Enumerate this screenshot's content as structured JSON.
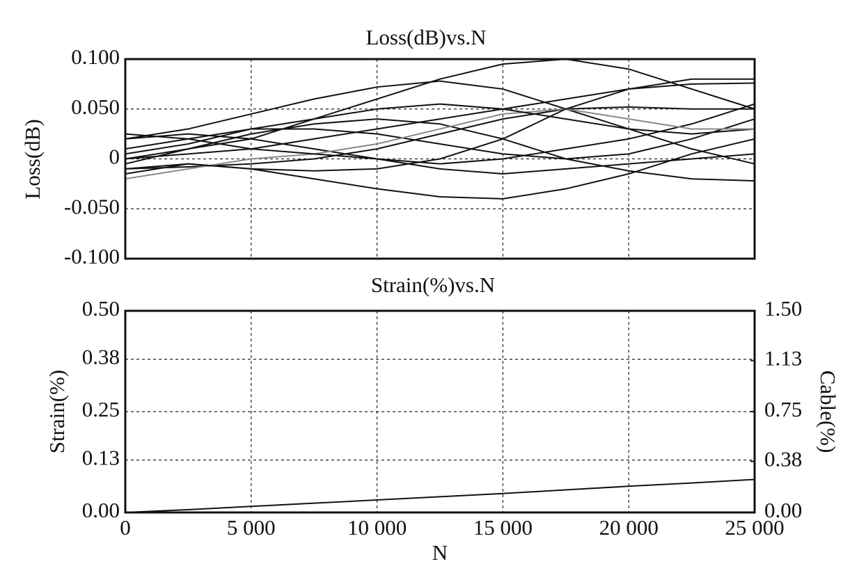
{
  "chart_data": [
    {
      "type": "line",
      "title": "Loss(dB)vs.N",
      "ylabel": "Loss(dB)",
      "x": [
        0,
        2500,
        5000,
        7500,
        10000,
        12500,
        15000,
        17500,
        20000,
        22500,
        25000
      ],
      "xlim": [
        0,
        25000
      ],
      "xticks": [
        0,
        5000,
        10000,
        15000,
        20000,
        25000
      ],
      "ylim": [
        -0.1,
        0.1
      ],
      "yticks": [
        {
          "value": 0.1,
          "label": "0.100"
        },
        {
          "value": 0.05,
          "label": "0.050"
        },
        0,
        {
          "value": -0.05,
          "label": "-0.050"
        },
        {
          "value": -0.1,
          "label": "-0.100"
        }
      ],
      "grid": true,
      "series": [
        {
          "color": "#111111",
          "values": [
            0.02,
            0.03,
            0.045,
            0.06,
            0.072,
            0.078,
            0.07,
            0.05,
            0.03,
            0.025,
            0.03
          ]
        },
        {
          "color": "#111111",
          "values": [
            -0.01,
            -0.005,
            -0.01,
            -0.02,
            -0.03,
            -0.038,
            -0.04,
            -0.03,
            -0.015,
            0.005,
            0.02
          ]
        },
        {
          "color": "#111111",
          "values": [
            0,
            0.01,
            0.02,
            0.04,
            0.06,
            0.08,
            0.095,
            0.1,
            0.09,
            0.07,
            0.05
          ]
        },
        {
          "color": "#111111",
          "values": [
            -0.005,
            0.01,
            0.025,
            0.035,
            0.04,
            0.035,
            0.02,
            0,
            -0.012,
            -0.02,
            -0.022
          ]
        },
        {
          "color": "#111111",
          "values": [
            0.01,
            0.02,
            0.03,
            0.03,
            0.025,
            0.015,
            0.005,
            0,
            0.005,
            0.02,
            0.04
          ]
        },
        {
          "color": "#111111",
          "values": [
            -0.01,
            -0.008,
            -0.005,
            0,
            0.01,
            0.025,
            0.04,
            0.05,
            0.052,
            0.05,
            0.05
          ]
        },
        {
          "color": "#111111",
          "values": [
            0,
            0.005,
            0.01,
            0.02,
            0.03,
            0.04,
            0.05,
            0.06,
            0.07,
            0.075,
            0.076
          ]
        },
        {
          "color": "#111111",
          "values": [
            0.02,
            0.025,
            0.02,
            0.01,
            0,
            -0.005,
            0,
            0.01,
            0.02,
            0.035,
            0.055
          ]
        },
        {
          "color": "#888888",
          "values": [
            -0.02,
            -0.01,
            0,
            0.005,
            0.015,
            0.03,
            0.045,
            0.05,
            0.04,
            0.03,
            0.03
          ]
        },
        {
          "color": "#111111",
          "values": [
            0.005,
            0.015,
            0.03,
            0.04,
            0.05,
            0.055,
            0.05,
            0.04,
            0.03,
            0.01,
            -0.005
          ]
        },
        {
          "color": "#111111",
          "values": [
            -0.015,
            -0.005,
            -0.01,
            -0.012,
            -0.01,
            0,
            0.02,
            0.05,
            0.07,
            0.08,
            0.08
          ]
        },
        {
          "color": "#111111",
          "values": [
            0.025,
            0.02,
            0.01,
            0.005,
            0,
            -0.01,
            -0.015,
            -0.01,
            -0.005,
            0,
            0.005
          ]
        }
      ]
    },
    {
      "type": "line",
      "title": "Strain(%)vs.N",
      "xlabel": "N",
      "ylabel": "Strain(%)",
      "y2label": "Cable(%)",
      "x": [
        0,
        2500,
        5000,
        7500,
        10000,
        12500,
        15000,
        17500,
        20000,
        22500,
        25000
      ],
      "xlim": [
        0,
        25000
      ],
      "xticks": [
        0,
        {
          "value": 5000,
          "label": "5 000"
        },
        {
          "value": 10000,
          "label": "10 000"
        },
        {
          "value": 15000,
          "label": "15 000"
        },
        {
          "value": 20000,
          "label": "20 000"
        },
        {
          "value": 25000,
          "label": "25 000"
        }
      ],
      "ylim": [
        0,
        0.5
      ],
      "yticks": [
        {
          "value": 0,
          "label": "0.00"
        },
        {
          "value": 0.13,
          "label": "0.13"
        },
        {
          "value": 0.25,
          "label": "0.25"
        },
        {
          "value": 0.38,
          "label": "0.38"
        },
        {
          "value": 0.5,
          "label": "0.50"
        }
      ],
      "y2lim": [
        0,
        1.5
      ],
      "y2ticks": [
        {
          "value": 0,
          "label": "0.00"
        },
        {
          "value": 0.38,
          "label": "0.38"
        },
        {
          "value": 0.75,
          "label": "0.75"
        },
        {
          "value": 1.13,
          "label": "1.13"
        },
        {
          "value": 1.5,
          "label": "1.50"
        }
      ],
      "grid": true,
      "series": [
        {
          "color": "#111111",
          "values": [
            0,
            0.007,
            0.015,
            0.023,
            0.031,
            0.039,
            0.047,
            0.056,
            0.065,
            0.073,
            0.082
          ]
        }
      ]
    }
  ]
}
